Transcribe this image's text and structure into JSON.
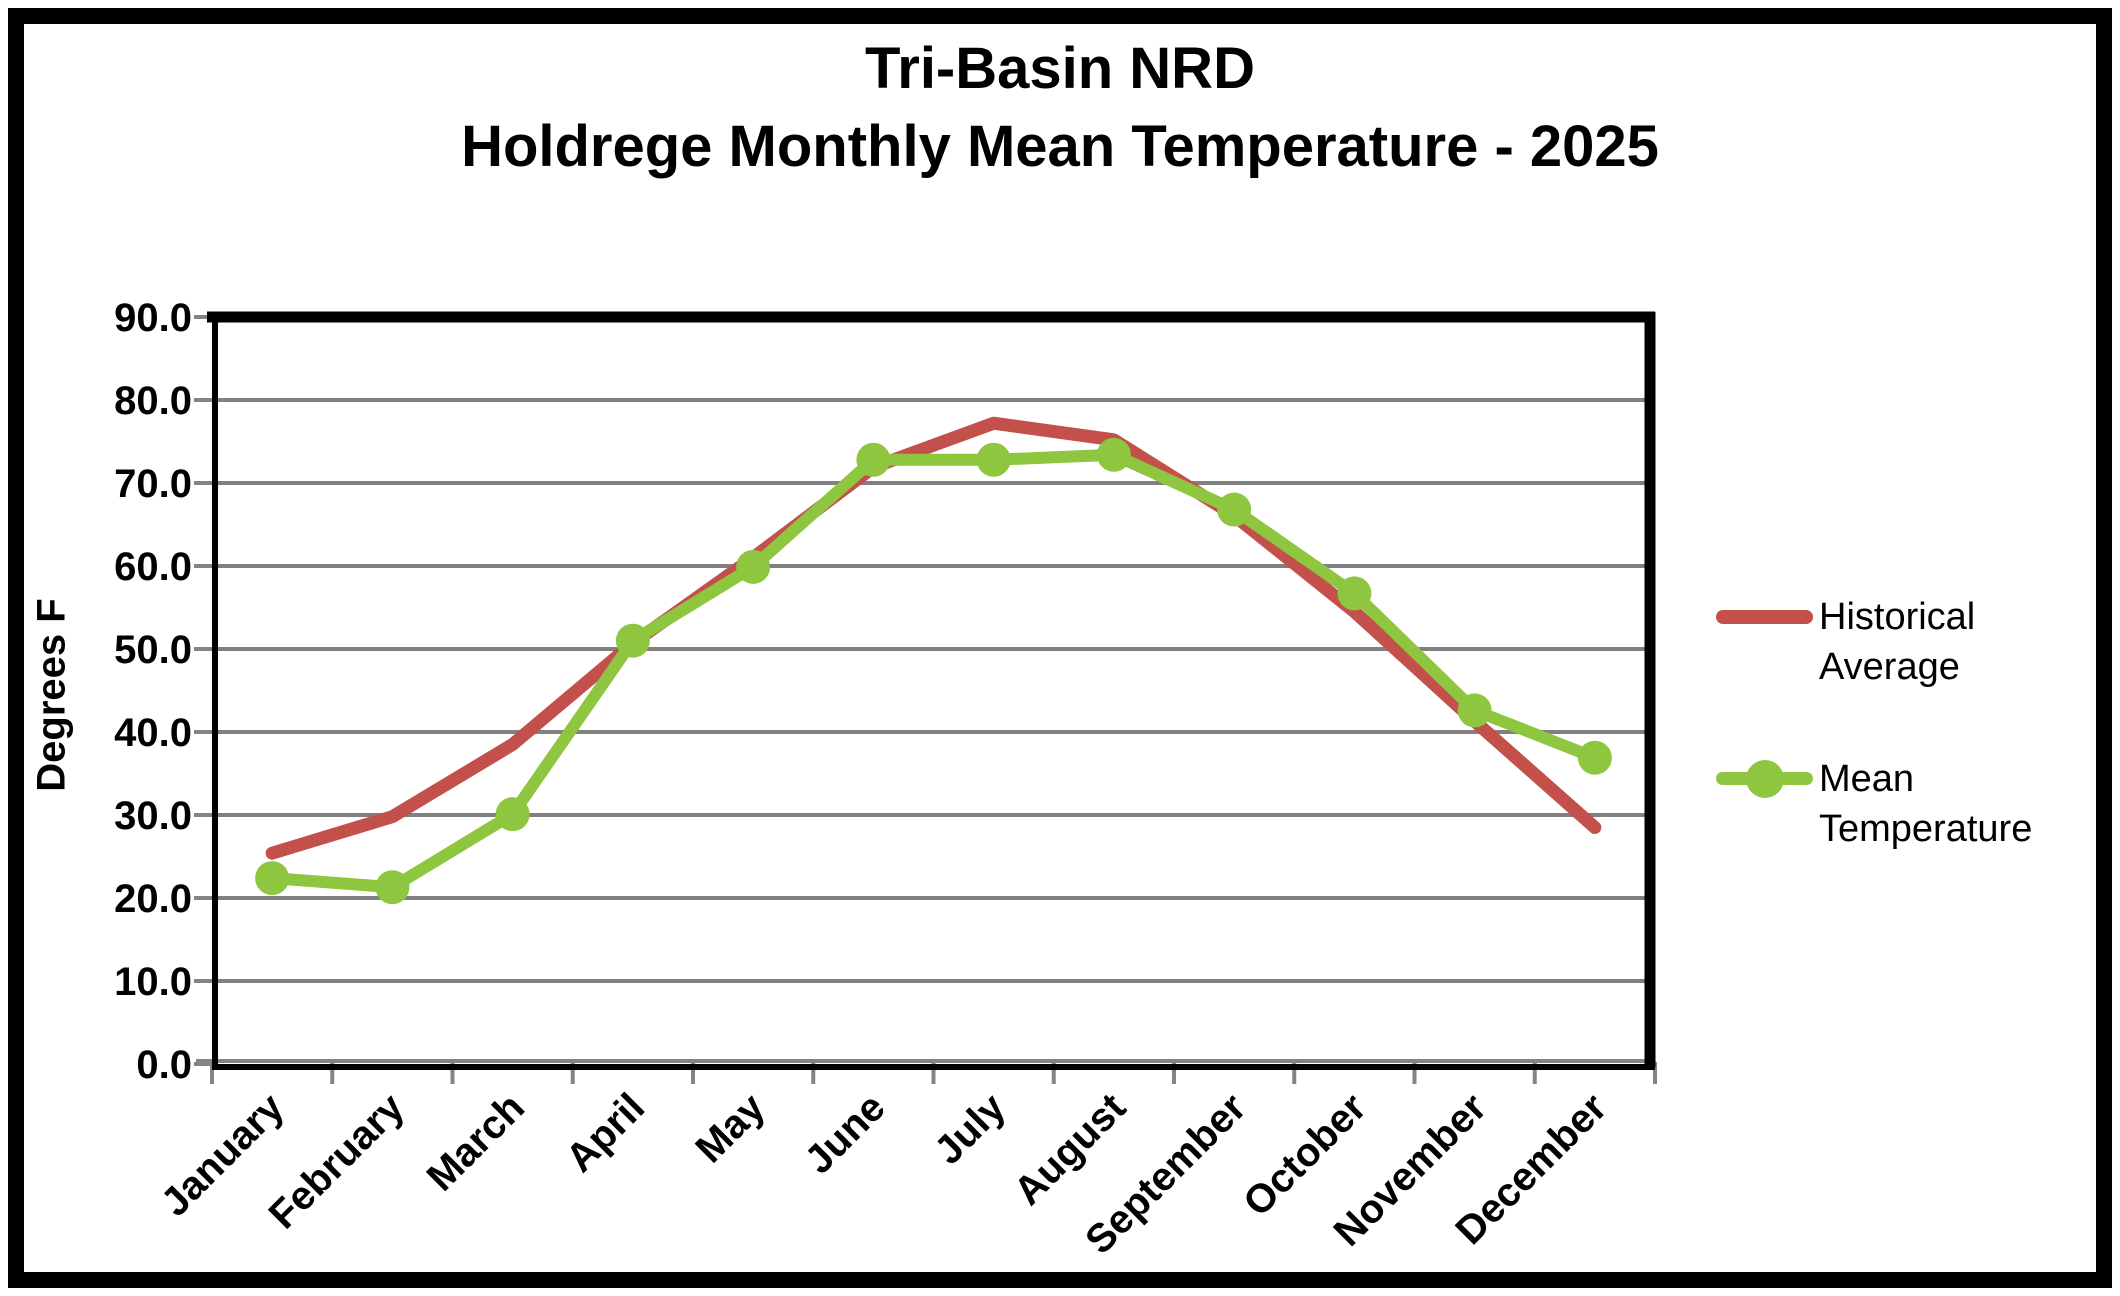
{
  "chart_data": {
    "type": "line",
    "title_lines": [
      "Tri-Basin NRD",
      "Holdrege Monthly Mean Temperature - 2025"
    ],
    "title": "Tri-Basin NRD Holdrege Monthly Mean Temperature - 2025",
    "categories": [
      "January",
      "February",
      "March",
      "April",
      "May",
      "June",
      "July",
      "August",
      "September",
      "October",
      "November",
      "December"
    ],
    "series": [
      {
        "name": "Historical Average",
        "color": "#c3504a",
        "marker": "none",
        "values": [
          25.4,
          29.8,
          38.5,
          50.7,
          61.0,
          71.9,
          77.2,
          75.2,
          66.1,
          54.5,
          41.3,
          28.5
        ]
      },
      {
        "name": "Mean Temperature",
        "color": "#8ec63f",
        "marker": "circle",
        "values": [
          22.4,
          21.3,
          30.1,
          51.0,
          59.9,
          72.8,
          72.8,
          73.4,
          66.8,
          56.7,
          42.6,
          36.9
        ]
      }
    ],
    "xlabel": "",
    "ylabel": "Degrees F",
    "ylim": [
      0,
      90
    ],
    "ytick_step": 10,
    "ytick_labels": [
      "0.0",
      "10.0",
      "20.0",
      "30.0",
      "40.0",
      "50.0",
      "60.0",
      "70.0",
      "80.0",
      "90.0"
    ],
    "grid": true,
    "legend_position": "right",
    "colors": {
      "gridline": "#808080",
      "tick": "#848484",
      "axis": "#000000",
      "plot_border": "#000000",
      "background": "#ffffff"
    }
  }
}
